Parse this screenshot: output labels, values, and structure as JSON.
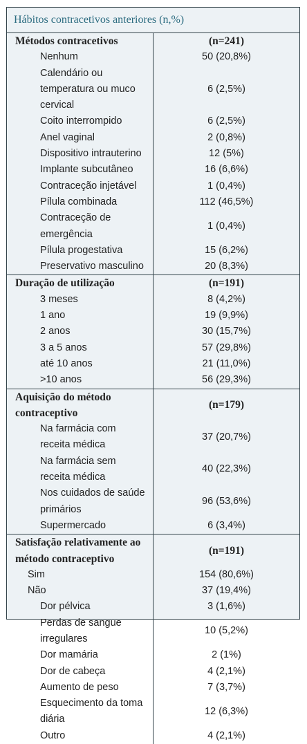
{
  "table": {
    "title": "Hábitos contracetivos anteriores (n,%)",
    "sections": [
      {
        "header": "Métodos contracetivos",
        "n": "(n=241)",
        "rows": [
          {
            "label": "Nenhum",
            "value": "50 (20,8%)"
          },
          {
            "label": "Calendário ou temperatura ou muco cervical",
            "value": "6 (2,5%)"
          },
          {
            "label": "Coito interrompido",
            "value": "6 (2,5%)"
          },
          {
            "label": "Anel vaginal",
            "value": "2 (0,8%)"
          },
          {
            "label": "Dispositivo intrauterino",
            "value": "12 (5%)"
          },
          {
            "label": "Implante subcutâneo",
            "value": "16 (6,6%)"
          },
          {
            "label": "Contraceção injetável",
            "value": "1 (0,4%)"
          },
          {
            "label": "Pílula combinada",
            "value": "112 (46,5%)"
          },
          {
            "label": "Contraceção de emergência",
            "value": "1 (0,4%)"
          },
          {
            "label": "Pílula progestativa",
            "value": "15 (6,2%)"
          },
          {
            "label": "Preservativo masculino",
            "value": "20 (8,3%)"
          }
        ]
      },
      {
        "header": "Duração de utilização",
        "n": "(n=191)",
        "rows": [
          {
            "label": "3 meses",
            "value": "8 (4,2%)"
          },
          {
            "label": "1 ano",
            "value": "19 (9,9%)"
          },
          {
            "label": "2 anos",
            "value": "30 (15,7%)"
          },
          {
            "label": "3 a 5 anos",
            "value": "57 (29,8%)"
          },
          {
            "label": "até 10 anos",
            "value": "21 (11,0%)"
          },
          {
            "label": ">10 anos",
            "value": "56 (29,3%)"
          }
        ]
      },
      {
        "header": "Aquisição do método contraceptivo",
        "n": "(n=179)",
        "rows": [
          {
            "label": "Na farmácia com receita médica",
            "value": "37 (20,7%)"
          },
          {
            "label": "Na farmácia sem receita médica",
            "value": "40 (22,3%)"
          },
          {
            "label": "Nos cuidados de saúde primários",
            "value": "96 (53,6%)"
          },
          {
            "label": "Supermercado",
            "value": "6 (3,4%)"
          }
        ]
      },
      {
        "header": "Satisfação relativamente ao método contraceptivo",
        "n": "(n=191)",
        "rows": [
          {
            "label": "Sim",
            "value": "154 (80,6%)"
          },
          {
            "label": "Não",
            "value": "37 (19,4%)",
            "children": [
              {
                "label": "Dor pélvica",
                "value": "3 (1,6%)"
              },
              {
                "label": "Perdas de sangue irregulares",
                "value": "10 (5,2%)"
              },
              {
                "label": "Dor mamária",
                "value": "2 (1%)"
              },
              {
                "label": "Dor de cabeça",
                "value": "4 (2,1%)"
              },
              {
                "label": "Aumento de peso",
                "value": "7 (3,7%)"
              },
              {
                "label": "Esquecimento da toma diária",
                "value": "12 (6,3%)"
              },
              {
                "label": "Outro",
                "value": "4 (2,1%)"
              }
            ]
          }
        ]
      }
    ]
  }
}
